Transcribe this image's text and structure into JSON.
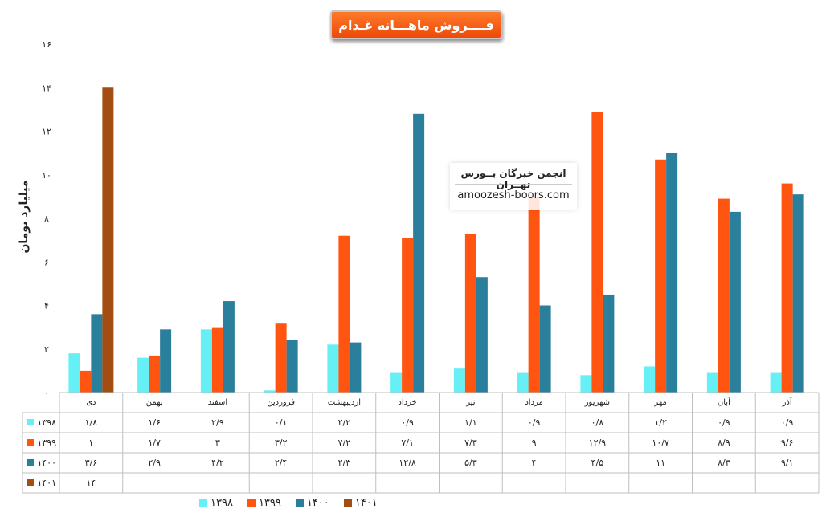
{
  "chart_data": {
    "type": "bar",
    "title": "فــــروش ماهـــانه غـدام",
    "ylabel": "میلیارد تومان",
    "ylim": [
      0,
      16
    ],
    "yticks": [
      "۰",
      "۲",
      "۴",
      "۶",
      "۸",
      "۱۰",
      "۱۲",
      "۱۴",
      "۱۶"
    ],
    "categories": [
      "دی",
      "بهمن",
      "اسفند",
      "فروردین",
      "اردیبهشت",
      "خرداد",
      "تیر",
      "مرداد",
      "شهریور",
      "مهر",
      "آبان",
      "آذر"
    ],
    "series": [
      {
        "name": "۱۳۹۸",
        "color": "#66f0f5",
        "values": [
          1.8,
          1.6,
          2.9,
          0.1,
          2.2,
          0.9,
          1.1,
          0.9,
          0.8,
          1.2,
          0.9,
          0.9
        ],
        "labels": [
          "۱/۸",
          "۱/۶",
          "۲/۹",
          "۰/۱",
          "۲/۲",
          "۰/۹",
          "۱/۱",
          "۰/۹",
          "۰/۸",
          "۱/۲",
          "۰/۹",
          "۰/۹"
        ]
      },
      {
        "name": "۱۳۹۹",
        "color": "#ff5510",
        "values": [
          1,
          1.7,
          3,
          3.2,
          7.2,
          7.1,
          7.3,
          9,
          12.9,
          10.7,
          8.9,
          9.6
        ],
        "labels": [
          "۱",
          "۱/۷",
          "۳",
          "۳/۲",
          "۷/۲",
          "۷/۱",
          "۷/۳",
          "۹",
          "۱۲/۹",
          "۱۰/۷",
          "۸/۹",
          "۹/۶"
        ]
      },
      {
        "name": "۱۴۰۰",
        "color": "#2a7f9c",
        "values": [
          3.6,
          2.9,
          4.2,
          2.4,
          2.3,
          12.8,
          5.3,
          4,
          4.5,
          11,
          8.3,
          9.1
        ],
        "labels": [
          "۳/۶",
          "۲/۹",
          "۴/۲",
          "۲/۴",
          "۲/۳",
          "۱۲/۸",
          "۵/۳",
          "۴",
          "۴/۵",
          "۱۱",
          "۸/۳",
          "۹/۱"
        ]
      },
      {
        "name": "۱۴۰۱",
        "color": "#a44d12",
        "values": [
          14,
          null,
          null,
          null,
          null,
          null,
          null,
          null,
          null,
          null,
          null,
          null
        ],
        "labels": [
          "۱۴",
          "",
          "",
          "",
          "",
          "",
          "",
          "",
          "",
          "",
          "",
          ""
        ]
      }
    ],
    "grid": false,
    "legend": "bottom"
  },
  "watermark": {
    "title": "انجمن خبرگان بــورس تهــران",
    "url": "amoozesh-boors.com"
  }
}
